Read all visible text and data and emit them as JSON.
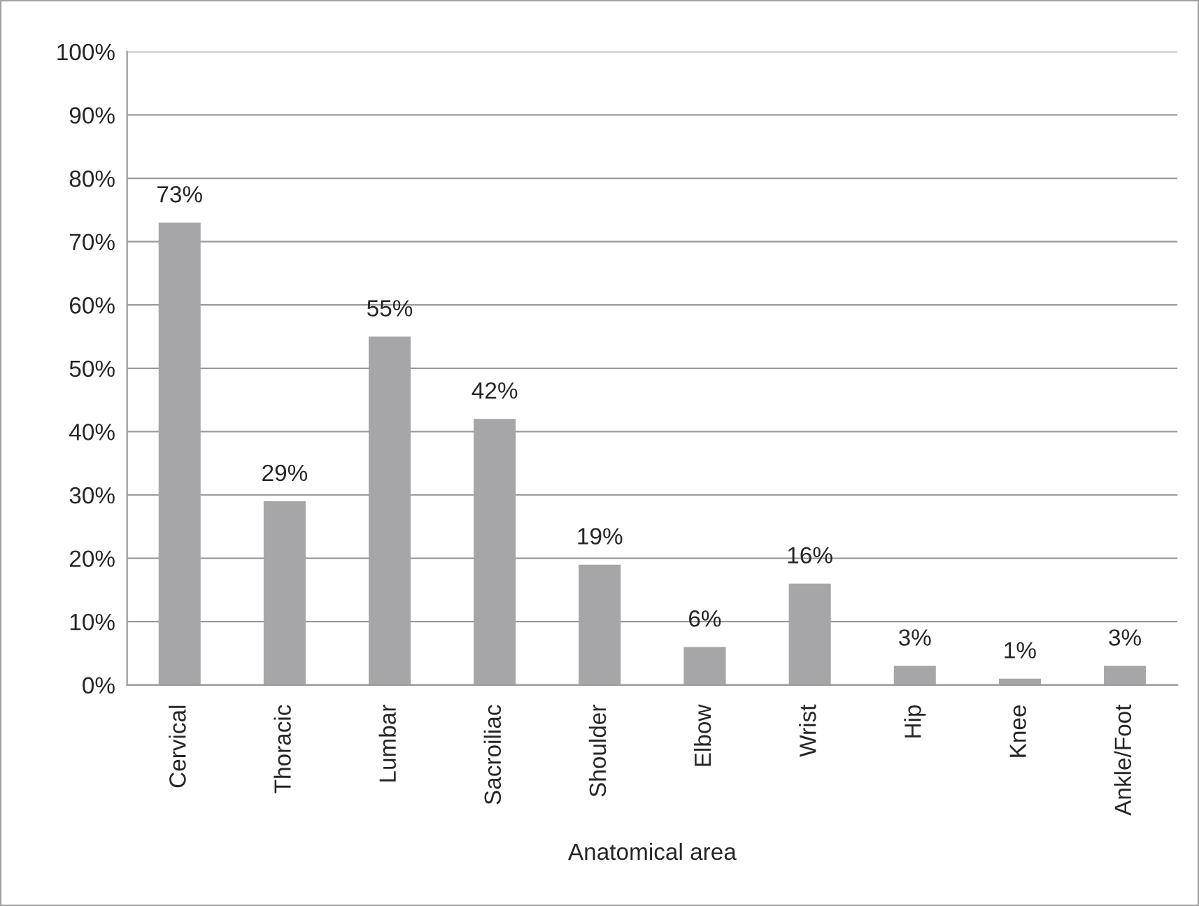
{
  "chart_data": {
    "type": "bar",
    "xlabel": "Anatomical area",
    "categories": [
      "Cervical",
      "Thoracic",
      "Lumbar",
      "Sacroiliac",
      "Shoulder",
      "Elbow",
      "Wrist",
      "Hip",
      "Knee",
      "Ankle/Foot"
    ],
    "values": [
      73,
      29,
      55,
      42,
      19,
      6,
      16,
      3,
      1,
      3
    ],
    "value_labels": [
      "73%",
      "29%",
      "55%",
      "42%",
      "19%",
      "6%",
      "16%",
      "3%",
      "1%",
      "3%"
    ],
    "color": "#a6a6a8",
    "ylim": [
      0,
      100
    ],
    "yticks": [
      {
        "value": 0,
        "label": "0%"
      },
      {
        "value": 10,
        "label": "10%"
      },
      {
        "value": 20,
        "label": "20%"
      },
      {
        "value": 30,
        "label": "30%"
      },
      {
        "value": 40,
        "label": "40%"
      },
      {
        "value": 50,
        "label": "50%"
      },
      {
        "value": 60,
        "label": "60%"
      },
      {
        "value": 70,
        "label": "70%"
      },
      {
        "value": 80,
        "label": "80%"
      },
      {
        "value": 90,
        "label": "90%"
      },
      {
        "value": 100,
        "label": "100%"
      }
    ],
    "grid": "y"
  }
}
